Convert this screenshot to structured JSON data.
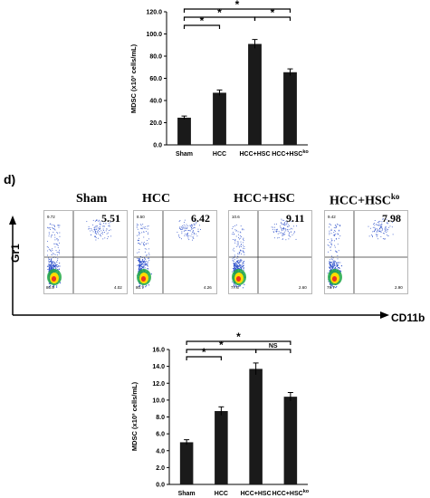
{
  "panel_label": "d)",
  "chart_data": [
    {
      "type": "bar",
      "ylabel": "MDSC (x10³ cells/mL)",
      "categories": [
        "Sham",
        "HCC",
        "HCC+HSC",
        "HCC+HSC"
      ],
      "category_superscripts": [
        "",
        "",
        "",
        "ko"
      ],
      "values": [
        24.5,
        47.0,
        91.0,
        65.5
      ],
      "errors": [
        1.5,
        2.5,
        4.0,
        3.0
      ],
      "ylim": [
        0,
        120
      ],
      "yticks": [
        "0.0",
        "20.0",
        "40.0",
        "60.0",
        "80.0",
        "100.0",
        "120.0"
      ],
      "brackets": [
        {
          "from": 0,
          "to": 1,
          "label": "*"
        },
        {
          "from": 0,
          "to": 2,
          "label": "*"
        },
        {
          "from": 0,
          "to": 3,
          "label": "*"
        },
        {
          "from": 2,
          "to": 3,
          "label": "*"
        }
      ]
    },
    {
      "type": "bar",
      "ylabel": "MDSC (x10³ cells/mL)",
      "categories": [
        "Sham",
        "HCC",
        "HCC+HSC",
        "HCC+HSC"
      ],
      "category_superscripts": [
        "",
        "",
        "",
        "ko"
      ],
      "values": [
        5.0,
        8.7,
        13.7,
        10.4
      ],
      "errors": [
        0.3,
        0.5,
        0.7,
        0.5
      ],
      "ylim": [
        0,
        16
      ],
      "yticks": [
        "0.0",
        "2.0",
        "4.0",
        "6.0",
        "8.0",
        "10.0",
        "12.0",
        "14.0",
        "16.0"
      ],
      "brackets": [
        {
          "from": 0,
          "to": 1,
          "label": "*"
        },
        {
          "from": 0,
          "to": 2,
          "label": "*"
        },
        {
          "from": 0,
          "to": 3,
          "label": "*"
        },
        {
          "from": 2,
          "to": 3,
          "label": "NS"
        }
      ]
    }
  ],
  "flow": {
    "x_axis_label": "CD11b",
    "y_axis_label": "Gr1",
    "plots": [
      {
        "title": "Sham",
        "superscript": "",
        "percent": "5.51",
        "q_ul": "9.72",
        "q_ll": "80.9",
        "q_lr": "4.02"
      },
      {
        "title": "HCC",
        "superscript": "",
        "percent": "6.42",
        "q_ul": "8.50",
        "q_ll": "80.7",
        "q_lr": "4.26"
      },
      {
        "title": "HCC+HSC",
        "superscript": "",
        "percent": "9.11",
        "q_ul": "10.6",
        "q_ll": "77.6",
        "q_lr": "2.60"
      },
      {
        "title": "HCC+HSC",
        "superscript": "ko",
        "percent": "7.98",
        "q_ul": "9.42",
        "q_ll": "79.7",
        "q_lr": "2.90"
      }
    ]
  }
}
